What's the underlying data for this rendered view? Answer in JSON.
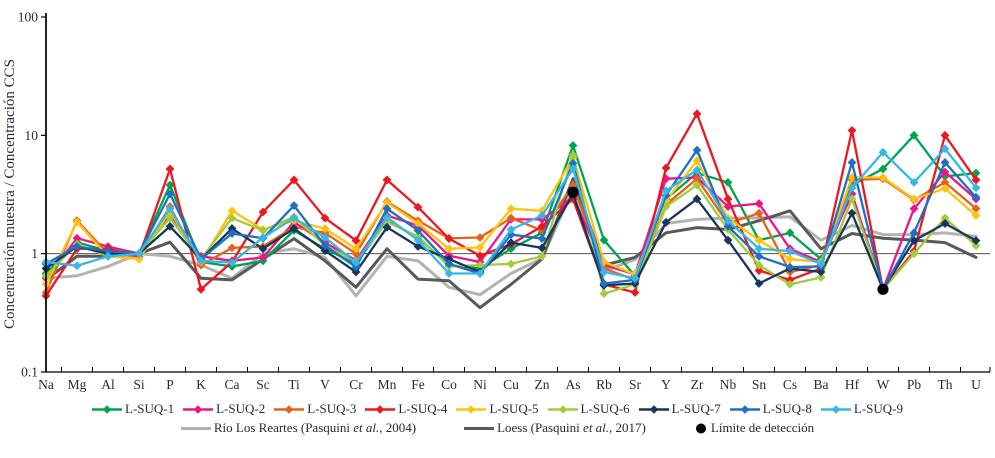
{
  "chart_data": {
    "type": "line",
    "title": "",
    "xlabel": "",
    "ylabel": "Concentración muestra / Concentración CCS",
    "yscale": "log",
    "ylim": [
      0.1,
      100
    ],
    "yticks": [
      "0.1",
      "1",
      "10",
      "100"
    ],
    "ytick_values": [
      0.1,
      1,
      10,
      100
    ],
    "reference_line_y": 1,
    "grid": false,
    "legend_position": "bottom",
    "categories": [
      "Na",
      "Mg",
      "Al",
      "Si",
      "P",
      "K",
      "Ca",
      "Sc",
      "Ti",
      "V",
      "Cr",
      "Mn",
      "Fe",
      "Co",
      "Ni",
      "Cu",
      "Zn",
      "As",
      "Rb",
      "Sr",
      "Y",
      "Zr",
      "Nb",
      "Sn",
      "Cs",
      "Ba",
      "Hf",
      "W",
      "Pb",
      "Th",
      "U"
    ],
    "series": [
      {
        "name": "L-SUQ-1",
        "color": "#00A44F",
        "marker": "diamond",
        "line_width": 2.3,
        "values": [
          0.68,
          1.25,
          1.05,
          1.0,
          3.8,
          0.85,
          0.78,
          0.87,
          1.57,
          1.1,
          0.82,
          1.9,
          1.37,
          0.8,
          0.75,
          1.1,
          1.5,
          8.2,
          1.3,
          0.65,
          2.9,
          4.8,
          4.0,
          1.3,
          1.5,
          0.9,
          3.8,
          5.2,
          10.0,
          4.5,
          4.8
        ]
      },
      {
        "name": "L-SUQ-2",
        "color": "#EC168C",
        "marker": "diamond",
        "line_width": 2.3,
        "values": [
          0.62,
          1.35,
          1.15,
          1.0,
          2.1,
          0.95,
          0.87,
          0.93,
          1.85,
          1.24,
          0.88,
          2.1,
          1.73,
          0.96,
          0.85,
          1.95,
          1.95,
          3.0,
          0.8,
          0.67,
          4.3,
          4.4,
          2.5,
          2.65,
          1.1,
          0.85,
          3.2,
          0.5,
          2.4,
          4.9,
          2.9
        ]
      },
      {
        "name": "L-SUQ-3",
        "color": "#E8611A",
        "marker": "diamond",
        "line_width": 2.3,
        "values": [
          0.47,
          1.9,
          1.0,
          0.95,
          2.5,
          0.8,
          1.12,
          1.15,
          1.68,
          1.5,
          1.0,
          2.75,
          1.9,
          1.35,
          1.37,
          2.0,
          1.57,
          3.8,
          0.75,
          0.6,
          2.6,
          4.3,
          1.8,
          2.2,
          0.7,
          0.8,
          4.2,
          4.3,
          2.85,
          4.0,
          2.4
        ]
      },
      {
        "name": "L-SUQ-4",
        "color": "#E9191F",
        "marker": "diamond",
        "line_width": 2.3,
        "values": [
          0.44,
          1.1,
          1.1,
          0.95,
          5.2,
          0.5,
          0.85,
          2.25,
          4.2,
          2.0,
          1.29,
          4.2,
          2.47,
          1.34,
          0.96,
          1.2,
          1.7,
          2.9,
          0.55,
          0.47,
          5.3,
          15.2,
          2.9,
          0.72,
          0.6,
          0.75,
          11.0,
          0.5,
          1.05,
          10.0,
          4.2
        ]
      },
      {
        "name": "L-SUQ-5",
        "color": "#FFC20E",
        "marker": "diamond",
        "line_width": 2.3,
        "values": [
          0.55,
          1.85,
          0.95,
          0.9,
          2.3,
          0.85,
          2.3,
          1.6,
          1.9,
          1.63,
          1.1,
          2.7,
          1.8,
          1.1,
          1.13,
          2.4,
          2.3,
          6.5,
          0.85,
          0.67,
          2.8,
          6.1,
          2.0,
          1.3,
          0.9,
          0.85,
          4.4,
          4.4,
          2.9,
          3.55,
          2.1
        ]
      },
      {
        "name": "L-SUQ-6",
        "color": "#A3CC3A",
        "marker": "diamond",
        "line_width": 2.3,
        "values": [
          0.65,
          1.2,
          0.95,
          1.0,
          2.0,
          0.9,
          2.0,
          1.57,
          2.05,
          1.17,
          0.86,
          1.85,
          1.4,
          0.78,
          0.8,
          0.82,
          0.95,
          6.8,
          0.46,
          0.55,
          2.5,
          3.8,
          1.6,
          0.8,
          0.55,
          0.63,
          2.9,
          0.5,
          1.0,
          2.0,
          1.17
        ]
      },
      {
        "name": "L-SUQ-7",
        "color": "#17365D",
        "marker": "diamond",
        "line_width": 2.3,
        "values": [
          0.75,
          1.15,
          1.0,
          1.0,
          1.7,
          0.9,
          1.63,
          1.1,
          1.63,
          1.06,
          0.7,
          1.67,
          1.15,
          0.9,
          0.7,
          1.24,
          1.12,
          3.2,
          0.54,
          0.56,
          1.84,
          2.9,
          1.3,
          0.56,
          0.75,
          0.7,
          2.2,
          0.5,
          1.29,
          1.8,
          1.29
        ]
      },
      {
        "name": "L-SUQ-8",
        "color": "#1D70C2",
        "marker": "diamond",
        "line_width": 2.3,
        "values": [
          0.82,
          1.15,
          1.05,
          1.0,
          3.2,
          0.9,
          1.48,
          1.35,
          2.55,
          1.17,
          0.77,
          2.4,
          1.57,
          0.82,
          0.68,
          1.45,
          1.34,
          5.8,
          0.56,
          0.6,
          3.1,
          7.5,
          1.7,
          0.95,
          0.77,
          0.78,
          5.9,
          0.5,
          1.5,
          5.9,
          3.0
        ]
      },
      {
        "name": "L-SUQ-9",
        "color": "#38B6E8",
        "marker": "diamond",
        "line_width": 2.3,
        "values": [
          0.85,
          0.79,
          0.95,
          1.0,
          2.4,
          0.87,
          0.84,
          1.37,
          2.0,
          1.37,
          0.84,
          2.03,
          1.3,
          0.68,
          0.68,
          1.6,
          2.1,
          5.2,
          0.7,
          0.62,
          3.4,
          5.1,
          1.9,
          1.1,
          1.05,
          0.82,
          3.6,
          7.2,
          4.0,
          7.7,
          3.6
        ]
      },
      {
        "name": "Río Los Reartes (Pasquini et al., 2004)",
        "color": "#B3B3B3",
        "marker": "none",
        "line_width": 3,
        "values": [
          0.62,
          0.65,
          0.78,
          1.0,
          0.95,
          0.8,
          0.62,
          1.0,
          1.1,
          0.93,
          0.44,
          0.95,
          0.87,
          0.52,
          0.45,
          0.68,
          0.91,
          3.5,
          0.72,
          0.89,
          1.8,
          1.95,
          2.0,
          2.0,
          2.05,
          1.3,
          1.73,
          1.45,
          1.45,
          1.5,
          1.4
        ]
      },
      {
        "name": "Loess (Pasquini et al., 2017)",
        "color": "#595959",
        "marker": "none",
        "line_width": 3,
        "values": [
          0.6,
          0.95,
          0.95,
          1.0,
          1.25,
          0.62,
          0.6,
          0.9,
          1.34,
          0.87,
          0.52,
          1.1,
          0.61,
          0.59,
          0.35,
          0.55,
          0.9,
          4.3,
          0.8,
          0.93,
          1.5,
          1.66,
          1.6,
          1.9,
          2.3,
          1.1,
          1.48,
          1.35,
          1.3,
          1.24,
          0.93
        ]
      }
    ],
    "detection_limit": {
      "name": "Límite de detección",
      "color": "#000000",
      "points": [
        {
          "element": "As",
          "value": 3.3
        },
        {
          "element": "W",
          "value": 0.5
        }
      ]
    }
  },
  "axis": {
    "y_title": "Concentración muestra / Concentración CCS",
    "y_tick_labels": [
      "100",
      "10",
      "1",
      "0.1"
    ]
  }
}
